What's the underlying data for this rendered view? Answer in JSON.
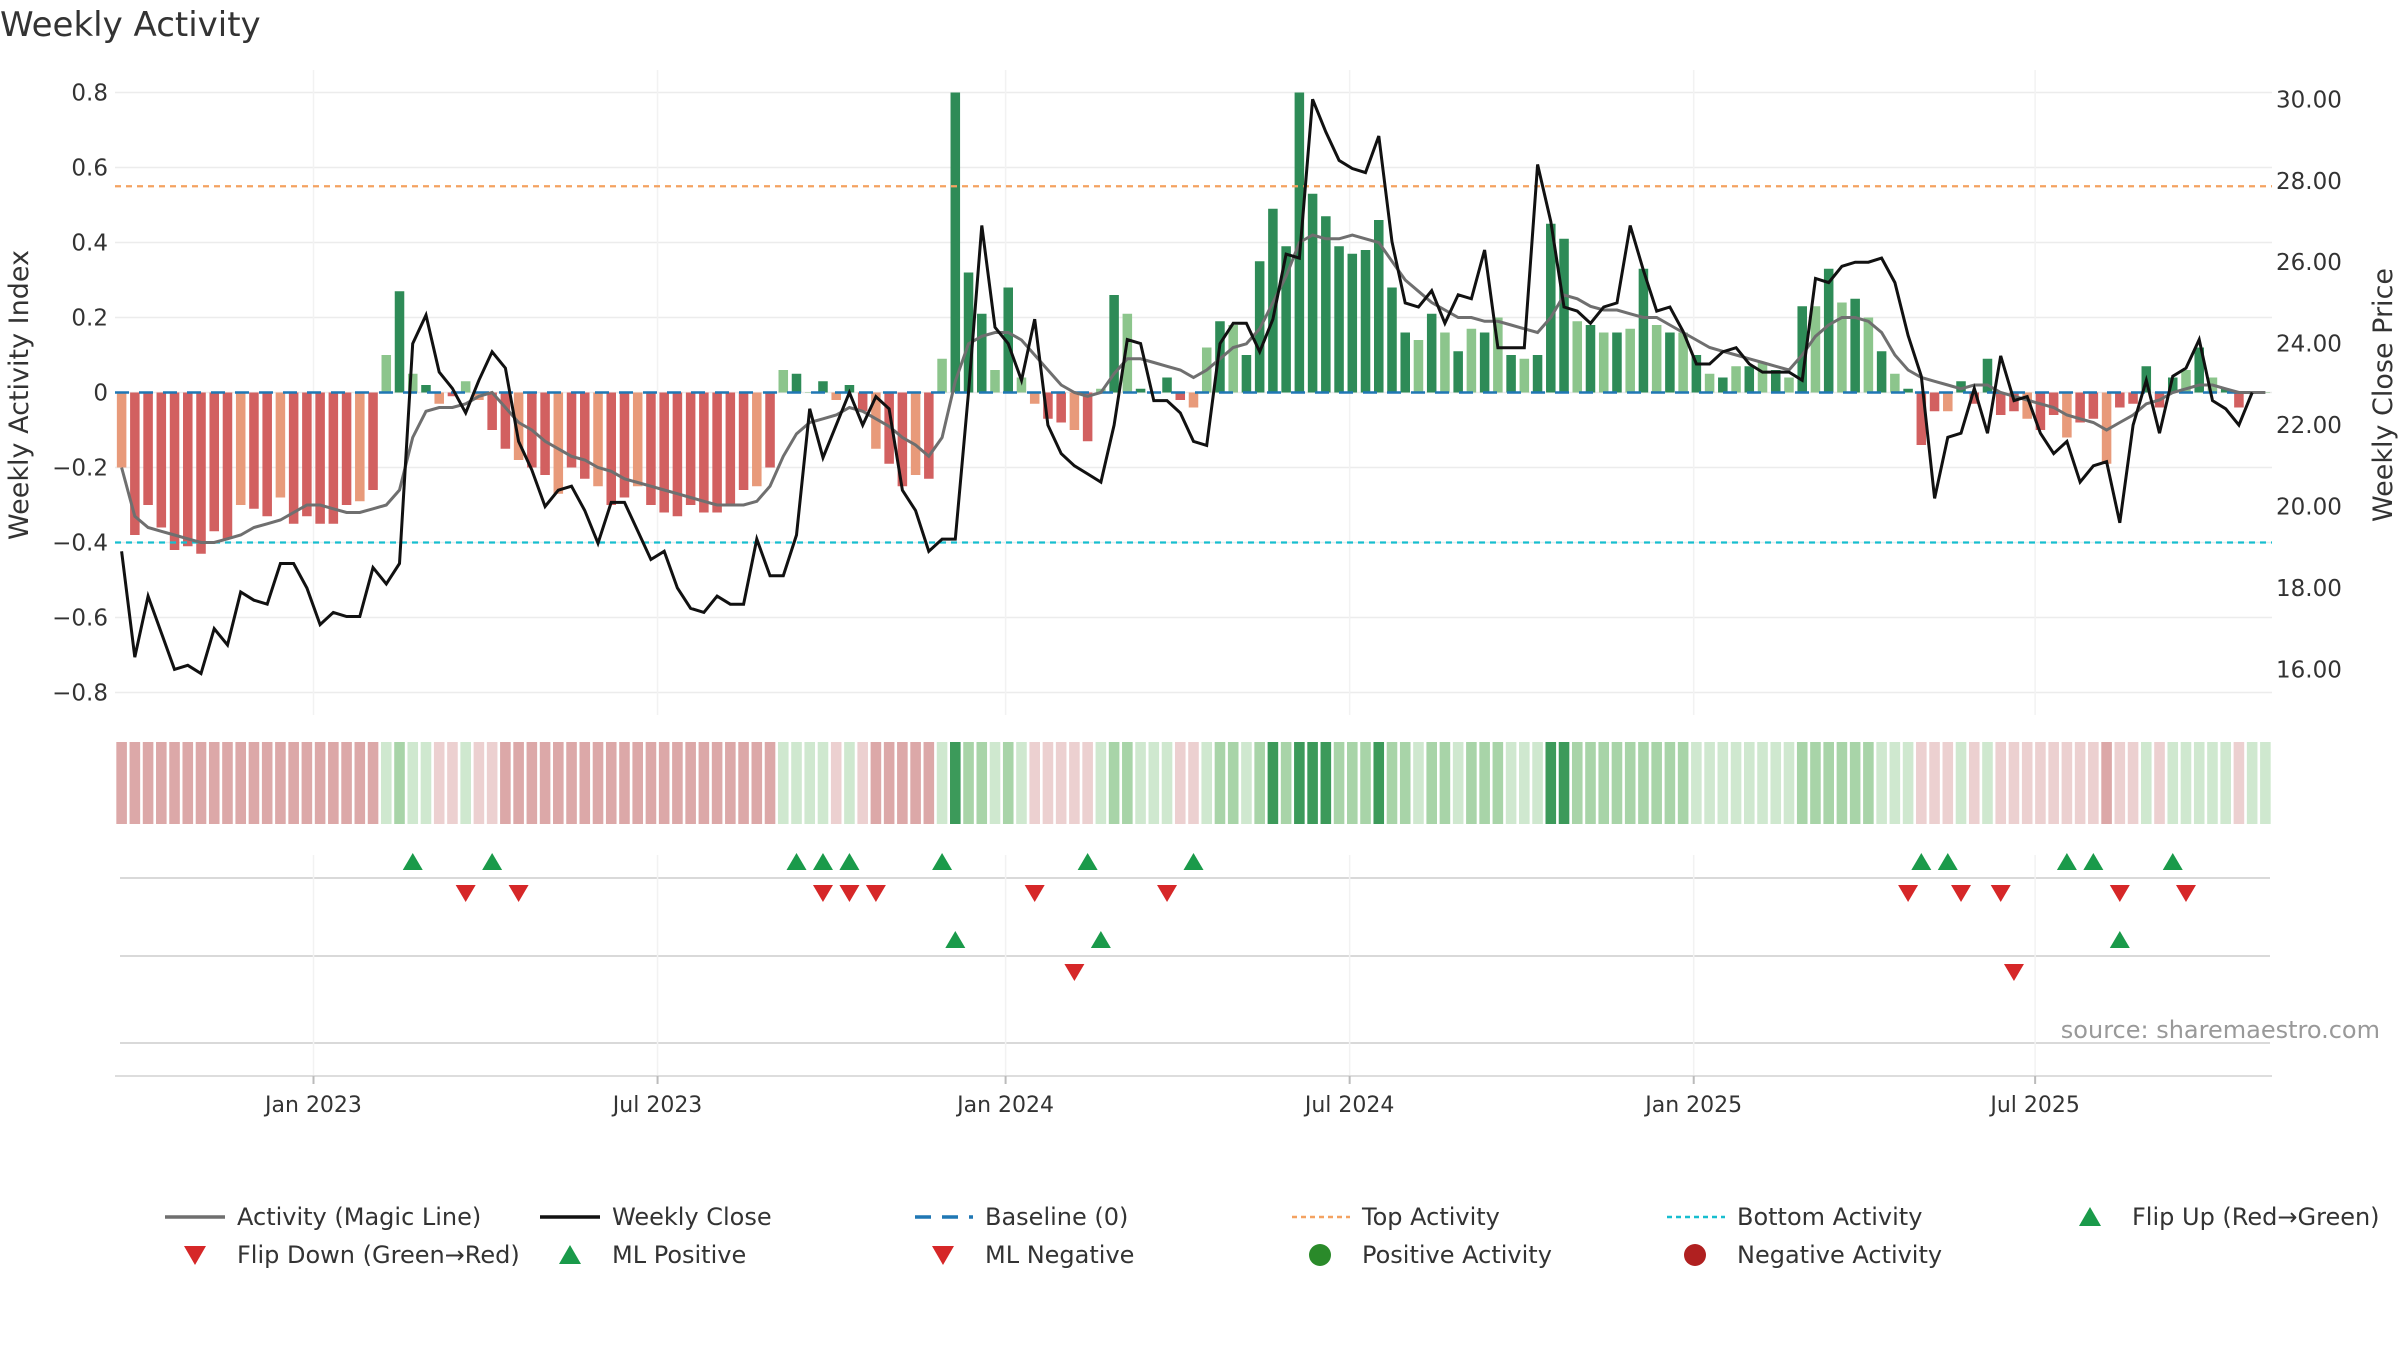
{
  "chart_data": {
    "type": "bar",
    "title": "Weekly Activity",
    "ylabel": "Weekly Activity Index",
    "y2label": "Weekly Close Price",
    "source": "source: sharemaestro.com",
    "ylim": [
      -0.86,
      0.86
    ],
    "y2lim": [
      14.88,
      30.72
    ],
    "yticks": [
      -0.8,
      -0.6,
      -0.4,
      -0.2,
      0,
      0.2,
      0.4,
      0.6,
      0.8
    ],
    "yticklabels": [
      "−0.8",
      "−0.6",
      "−0.4",
      "−0.2",
      "0",
      "0.2",
      "0.4",
      "0.6",
      "0.8"
    ],
    "y2ticks": [
      16,
      18,
      20,
      22,
      24,
      26,
      28,
      30
    ],
    "y2ticklabels": [
      "16.00",
      "18.00",
      "20.00",
      "22.00",
      "24.00",
      "26.00",
      "28.00",
      "30.00"
    ],
    "xticklabels": [
      "Jan 2023",
      "Jul 2023",
      "Jan 2024",
      "Jul 2024",
      "Jan 2025",
      "Jul 2025"
    ],
    "xtick_weeks": [
      15,
      41,
      67.3,
      93.3,
      119.3,
      145.1
    ],
    "top_activity": 0.55,
    "bottom_activity": -0.4,
    "activity": [
      -0.2,
      -0.38,
      -0.3,
      -0.36,
      -0.42,
      -0.41,
      -0.43,
      -0.37,
      -0.39,
      -0.3,
      -0.31,
      -0.33,
      -0.28,
      -0.35,
      -0.33,
      -0.35,
      -0.35,
      -0.3,
      -0.29,
      -0.26,
      0.1,
      0.27,
      0.05,
      0.02,
      -0.03,
      -0.01,
      0.03,
      -0.02,
      -0.1,
      -0.15,
      -0.18,
      -0.2,
      -0.22,
      -0.27,
      -0.2,
      -0.23,
      -0.25,
      -0.3,
      -0.28,
      -0.25,
      -0.3,
      -0.32,
      -0.33,
      -0.3,
      -0.32,
      -0.32,
      -0.3,
      -0.26,
      -0.25,
      -0.2,
      0.06,
      0.05,
      0.0,
      0.03,
      -0.02,
      0.02,
      -0.05,
      -0.15,
      -0.19,
      -0.25,
      -0.22,
      -0.23,
      0.09,
      0.8,
      0.32,
      0.21,
      0.06,
      0.28,
      0.04,
      -0.03,
      -0.07,
      -0.08,
      -0.1,
      -0.13,
      0.01,
      0.26,
      0.21,
      0.01,
      0.0,
      0.04,
      -0.02,
      -0.04,
      0.12,
      0.19,
      0.18,
      0.1,
      0.35,
      0.49,
      0.39,
      0.8,
      0.53,
      0.47,
      0.39,
      0.37,
      0.38,
      0.46,
      0.28,
      0.16,
      0.14,
      0.21,
      0.16,
      0.11,
      0.17,
      0.16,
      0.2,
      0.1,
      0.09,
      0.1,
      0.45,
      0.41,
      0.19,
      0.18,
      0.16,
      0.16,
      0.17,
      0.33,
      0.18,
      0.16,
      0.16,
      0.1,
      0.05,
      0.04,
      0.07,
      0.07,
      0.08,
      0.06,
      0.04,
      0.23,
      0.23,
      0.33,
      0.24,
      0.25,
      0.2,
      0.11,
      0.05,
      0.01,
      -0.14,
      -0.05,
      -0.05,
      0.03,
      -0.03,
      0.09,
      -0.06,
      -0.05,
      -0.07,
      -0.1,
      -0.06,
      -0.12,
      -0.08,
      -0.07,
      -0.19,
      -0.04,
      -0.03,
      0.07,
      -0.04,
      0.04,
      0.06,
      0.12,
      0.04,
      0.01,
      -0.04,
      0.0,
      0.0
    ],
    "magic_line": [
      -0.2,
      -0.33,
      -0.36,
      -0.37,
      -0.38,
      -0.39,
      -0.4,
      -0.4,
      -0.39,
      -0.38,
      -0.36,
      -0.35,
      -0.34,
      -0.32,
      -0.3,
      -0.3,
      -0.31,
      -0.32,
      -0.32,
      -0.31,
      -0.3,
      -0.26,
      -0.12,
      -0.05,
      -0.04,
      -0.04,
      -0.03,
      -0.01,
      0.0,
      -0.04,
      -0.08,
      -0.1,
      -0.13,
      -0.15,
      -0.17,
      -0.18,
      -0.2,
      -0.21,
      -0.23,
      -0.24,
      -0.25,
      -0.26,
      -0.27,
      -0.28,
      -0.29,
      -0.3,
      -0.3,
      -0.3,
      -0.29,
      -0.25,
      -0.17,
      -0.11,
      -0.08,
      -0.07,
      -0.06,
      -0.04,
      -0.05,
      -0.07,
      -0.09,
      -0.12,
      -0.14,
      -0.17,
      -0.12,
      0.03,
      0.13,
      0.15,
      0.16,
      0.16,
      0.14,
      0.1,
      0.06,
      0.02,
      0.0,
      -0.01,
      0.0,
      0.05,
      0.09,
      0.09,
      0.08,
      0.07,
      0.06,
      0.04,
      0.06,
      0.09,
      0.12,
      0.13,
      0.17,
      0.24,
      0.31,
      0.4,
      0.42,
      0.41,
      0.41,
      0.42,
      0.41,
      0.4,
      0.35,
      0.3,
      0.27,
      0.24,
      0.22,
      0.2,
      0.2,
      0.19,
      0.19,
      0.18,
      0.17,
      0.16,
      0.2,
      0.26,
      0.25,
      0.23,
      0.22,
      0.22,
      0.21,
      0.2,
      0.2,
      0.18,
      0.16,
      0.14,
      0.12,
      0.11,
      0.1,
      0.09,
      0.08,
      0.07,
      0.06,
      0.1,
      0.15,
      0.18,
      0.2,
      0.2,
      0.19,
      0.16,
      0.1,
      0.06,
      0.04,
      0.03,
      0.02,
      0.01,
      0.02,
      0.02,
      0.0,
      -0.01,
      -0.02,
      -0.03,
      -0.04,
      -0.06,
      -0.07,
      -0.08,
      -0.1,
      -0.08,
      -0.06,
      -0.03,
      -0.02,
      0.0,
      0.01,
      0.02,
      0.02,
      0.01,
      0.0,
      0.0,
      0.0
    ],
    "weekly_close": [
      18.9,
      16.3,
      17.8,
      16.9,
      16.0,
      16.1,
      15.9,
      17.0,
      16.6,
      17.9,
      17.7,
      17.6,
      18.6,
      18.6,
      18.0,
      17.1,
      17.4,
      17.3,
      17.3,
      18.5,
      18.1,
      18.6,
      24.0,
      24.7,
      23.3,
      22.9,
      22.3,
      23.1,
      23.8,
      23.4,
      21.6,
      20.9,
      20.0,
      20.4,
      20.5,
      19.9,
      19.1,
      20.1,
      20.1,
      19.4,
      18.7,
      18.9,
      18.0,
      17.5,
      17.4,
      17.8,
      17.6,
      17.6,
      19.2,
      18.3,
      18.3,
      19.3,
      22.4,
      21.2,
      22.0,
      22.8,
      22.0,
      22.7,
      22.4,
      20.4,
      19.9,
      18.9,
      19.2,
      19.2,
      22.8,
      26.9,
      24.4,
      24.0,
      23.1,
      24.6,
      22.0,
      21.3,
      21.0,
      20.8,
      20.6,
      22.0,
      24.1,
      24.0,
      22.6,
      22.6,
      22.3,
      21.6,
      21.5,
      24.0,
      24.5,
      24.5,
      23.8,
      24.6,
      26.2,
      26.1,
      30.0,
      29.2,
      28.5,
      28.3,
      28.2,
      29.1,
      26.5,
      25.0,
      24.9,
      25.3,
      24.5,
      25.2,
      25.1,
      26.3,
      23.9,
      23.9,
      23.9,
      28.4,
      27.0,
      24.9,
      24.8,
      24.5,
      24.9,
      25.0,
      26.9,
      25.8,
      24.8,
      24.9,
      24.3,
      23.5,
      23.5,
      23.8,
      23.9,
      23.5,
      23.3,
      23.3,
      23.3,
      23.1,
      25.6,
      25.5,
      25.9,
      26.0,
      26.0,
      26.1,
      25.5,
      24.2,
      23.2,
      20.2,
      21.7,
      21.8,
      22.9,
      21.8,
      23.7,
      22.6,
      22.7,
      21.8,
      21.3,
      21.6,
      20.6,
      21.0,
      21.1,
      19.6,
      22.0,
      23.1,
      21.8,
      23.2,
      23.4,
      24.1,
      22.6,
      22.4,
      22.0,
      22.8
    ],
    "series": [
      {
        "name": "Activity (Magic Line)",
        "color": "#6f6f6f",
        "style": "line"
      },
      {
        "name": "Weekly Close",
        "color": "#111111",
        "style": "line"
      },
      {
        "name": "Baseline (0)",
        "color": "#1f77b4",
        "style": "dashed"
      },
      {
        "name": "Top Activity",
        "color": "#f4a261",
        "style": "dotted"
      },
      {
        "name": "Bottom Activity",
        "color": "#17becf",
        "style": "dotted"
      }
    ],
    "legend": [
      {
        "label": "Activity (Magic Line)",
        "kind": "line",
        "color": "#6f6f6f"
      },
      {
        "label": "Weekly Close",
        "kind": "line",
        "color": "#111111"
      },
      {
        "label": "Baseline (0)",
        "kind": "dash",
        "color": "#1f77b4"
      },
      {
        "label": "Top Activity",
        "kind": "dot",
        "color": "#f4a261"
      },
      {
        "label": "Bottom Activity",
        "kind": "dot",
        "color": "#17becf"
      },
      {
        "label": "Flip Up (Red→Green)",
        "kind": "up",
        "color": "#1a9a4a"
      },
      {
        "label": "Flip Down (Green→Red)",
        "kind": "down",
        "color": "#d62728"
      },
      {
        "label": "ML Positive",
        "kind": "up",
        "color": "#1a9a4a"
      },
      {
        "label": "ML Negative",
        "kind": "down",
        "color": "#d62728"
      },
      {
        "label": "Positive Activity",
        "kind": "circle",
        "color": "#2a8a2a"
      },
      {
        "label": "Negative Activity",
        "kind": "circle",
        "color": "#b02020"
      }
    ],
    "legend_position": "bottom",
    "flip_up_weeks": [
      22,
      28,
      51,
      53,
      55,
      62,
      73,
      81,
      136,
      138,
      147,
      149,
      155
    ],
    "flip_down_weeks": [
      26,
      30,
      53,
      55,
      57,
      69,
      79,
      135,
      139,
      142,
      151,
      156
    ],
    "ml_positive_weeks": [
      63,
      74,
      151
    ],
    "ml_negative_weeks": [
      72,
      143
    ],
    "colors": {
      "pos_dark": "#2e8b57",
      "pos_light": "#8cc58c",
      "neg_dark": "#d26060",
      "neg_light": "#e89a7a",
      "strip_pos_strong": "#3c9a5a",
      "strip_pos": "#a8d4a8",
      "strip_pos_weak": "#cfe8cf",
      "strip_neg": "#dca8a8",
      "strip_neg_weak": "#ecd0d0"
    }
  }
}
